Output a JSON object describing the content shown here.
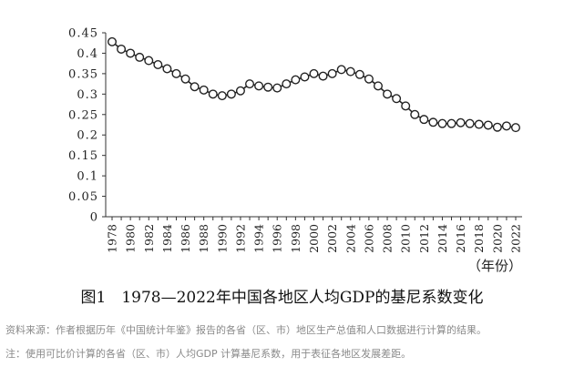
{
  "chart_data": {
    "type": "line",
    "title": "图1　1978—2022年中国各地区人均GDP的基尼系数变化",
    "xlabel": "（年份）",
    "ylabel": "",
    "ylim": [
      0,
      0.45
    ],
    "yticks": [
      "0",
      "0.05",
      "0.1",
      "0.15",
      "0.2",
      "0.25",
      "0.3",
      "0.35",
      "0.4",
      "0.45"
    ],
    "xticks": [
      "1978",
      "1980",
      "1982",
      "1984",
      "1986",
      "1988",
      "1990",
      "1992",
      "1994",
      "1996",
      "1998",
      "2000",
      "2002",
      "2004",
      "2006",
      "2008",
      "2010",
      "2012",
      "2014",
      "2016",
      "2018",
      "2020",
      "2022"
    ],
    "grid": false,
    "marker": "hollow-circle",
    "x": [
      1978,
      1979,
      1980,
      1981,
      1982,
      1983,
      1984,
      1985,
      1986,
      1987,
      1988,
      1989,
      1990,
      1991,
      1992,
      1993,
      1994,
      1995,
      1996,
      1997,
      1998,
      1999,
      2000,
      2001,
      2002,
      2003,
      2004,
      2005,
      2006,
      2007,
      2008,
      2009,
      2010,
      2011,
      2012,
      2013,
      2014,
      2015,
      2016,
      2017,
      2018,
      2019,
      2020,
      2021,
      2022
    ],
    "values": [
      0.428,
      0.41,
      0.4,
      0.39,
      0.382,
      0.372,
      0.362,
      0.35,
      0.337,
      0.318,
      0.31,
      0.3,
      0.296,
      0.3,
      0.308,
      0.325,
      0.32,
      0.317,
      0.315,
      0.325,
      0.335,
      0.342,
      0.35,
      0.344,
      0.35,
      0.36,
      0.355,
      0.348,
      0.337,
      0.32,
      0.3,
      0.289,
      0.271,
      0.25,
      0.238,
      0.231,
      0.228,
      0.228,
      0.23,
      0.228,
      0.226,
      0.224,
      0.219,
      0.222,
      0.218
    ]
  },
  "caption": "图1　1978—2022年中国各地区人均GDP的基尼系数变化",
  "notes": {
    "source": "资料来源：作者根据历年《中国统计年鉴》报告的各省（区、市）地区生产总值和人口数据进行计算的结果。",
    "note": "注：使用可比价计算的各省（区、市）人均GDP 计算基尼系数，用于表征各地区发展差距。"
  }
}
